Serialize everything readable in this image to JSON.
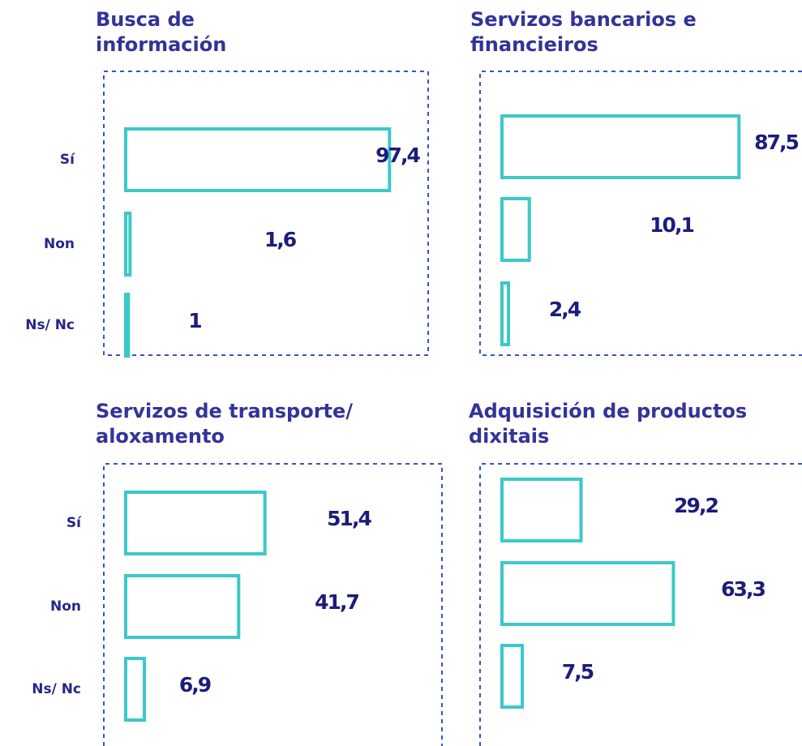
{
  "chart_data": [
    {
      "type": "bar",
      "title": [
        "Busca de",
        "información"
      ],
      "categories": [
        "Sí",
        "Non",
        "Ns/ Nc"
      ],
      "values": [
        97.4,
        1.6,
        1
      ],
      "value_labels": [
        "97,4",
        "1,6",
        "1"
      ],
      "color": "#3cc8c8",
      "xlim": [
        0,
        100
      ]
    },
    {
      "type": "bar",
      "title": [
        "Servizos bancarios e",
        "financieiros"
      ],
      "categories": [
        null,
        null,
        null
      ],
      "values": [
        87.5,
        10.1,
        2.4
      ],
      "value_labels": [
        "87,5",
        "10,1",
        "2,4"
      ],
      "color": "#3cc8c8",
      "xlim": [
        0,
        100
      ]
    },
    {
      "type": "bar",
      "title": [
        "Servizos de transporte/",
        "aloxamento"
      ],
      "categories": [
        "Sí",
        "Non",
        "Ns/ Nc"
      ],
      "values": [
        51.4,
        41.7,
        6.9
      ],
      "value_labels": [
        "51,4",
        "41,7",
        "6,9"
      ],
      "color": "#3cc8c8",
      "xlim": [
        0,
        100
      ]
    },
    {
      "type": "bar",
      "title": [
        "Adquisición de productos",
        "dixitais"
      ],
      "categories": [
        null,
        null,
        null
      ],
      "values": [
        29.2,
        63.3,
        7.5
      ],
      "value_labels": [
        "29,2",
        "63,3",
        "7,5"
      ],
      "color": "#3cc8c8",
      "xlim": [
        0,
        100
      ]
    }
  ]
}
